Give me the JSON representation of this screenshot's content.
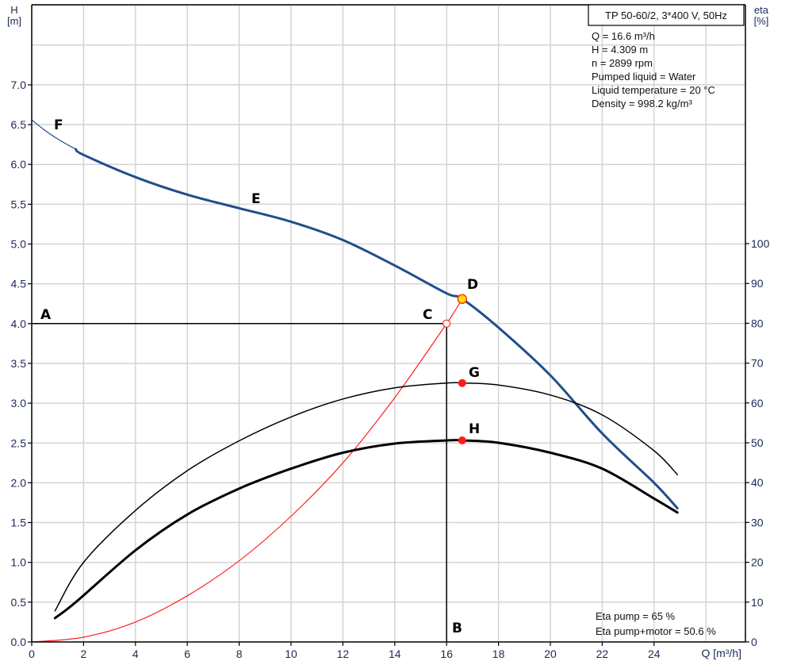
{
  "chart_data": {
    "type": "line",
    "title": "TP 50-60/2, 3*400 V, 50Hz",
    "xlabel": "Q [m³/h]",
    "ylabel_left": "H [m]",
    "ylabel_right": "eta [%]",
    "xlim": [
      0,
      27.5
    ],
    "ylim_left": [
      0,
      8.0
    ],
    "ylim_right": [
      0,
      160
    ],
    "grid": true,
    "x_ticks": [
      0,
      2,
      4,
      6,
      8,
      10,
      12,
      14,
      16,
      18,
      20,
      22,
      24
    ],
    "y_left_ticks": [
      0.0,
      0.5,
      1.0,
      1.5,
      2.0,
      2.5,
      3.0,
      3.5,
      4.0,
      4.5,
      5.0,
      5.5,
      6.0,
      6.5,
      7.0
    ],
    "y_right_ticks": [
      0,
      10,
      20,
      30,
      40,
      50,
      60,
      70,
      80,
      90,
      100
    ],
    "series": [
      {
        "name": "Pump curve H (extrapolated, thin)",
        "axis": "left",
        "color": "#1f4e8c",
        "width": 1.2,
        "x": [
          0,
          0.5,
          1.0,
          1.7
        ],
        "y": [
          6.56,
          6.43,
          6.32,
          6.19
        ]
      },
      {
        "name": "Pump curve H",
        "axis": "left",
        "color": "#1f4e8c",
        "width": 3,
        "x": [
          1.7,
          2,
          4,
          6,
          8,
          10,
          12,
          14,
          16,
          16.6,
          18,
          20,
          22,
          24,
          24.9
        ],
        "y": [
          6.19,
          6.12,
          5.84,
          5.62,
          5.45,
          5.28,
          5.05,
          4.73,
          4.38,
          4.31,
          3.95,
          3.35,
          2.62,
          2.0,
          1.68
        ]
      },
      {
        "name": "System curve",
        "axis": "left",
        "color": "#ff2020",
        "width": 1.2,
        "x": [
          0,
          2,
          4,
          6,
          8,
          10,
          12,
          14,
          16,
          16.6
        ],
        "y": [
          0,
          0.06,
          0.25,
          0.58,
          1.02,
          1.58,
          2.25,
          3.07,
          4.0,
          4.31
        ]
      },
      {
        "name": "Eta pump",
        "axis": "right",
        "color": "#000000",
        "width": 1.5,
        "x": [
          0.9,
          2,
          4,
          6,
          8,
          10,
          12,
          14,
          16,
          16.6,
          18,
          20,
          22,
          24,
          24.9
        ],
        "y": [
          7.8,
          20,
          33,
          43,
          50.5,
          56.5,
          61,
          63.8,
          65,
          65,
          64.5,
          62,
          57,
          48,
          42
        ]
      },
      {
        "name": "Eta pump+motor",
        "axis": "right",
        "color": "#000000",
        "width": 3,
        "x": [
          0.9,
          1.7,
          4,
          6,
          8,
          10,
          12,
          14,
          16,
          16.6,
          18,
          20,
          22,
          24,
          24.9
        ],
        "y": [
          6,
          10,
          23,
          32,
          38.5,
          43.5,
          47.5,
          49.8,
          50.6,
          50.6,
          50,
          47.5,
          43.5,
          36,
          32.5
        ]
      }
    ],
    "reference_lines": [
      {
        "name": "Required head",
        "from": [
          0,
          4.0
        ],
        "to": [
          16,
          4.0
        ]
      },
      {
        "name": "Required flow",
        "from": [
          16,
          0
        ],
        "to": [
          16,
          4.0
        ]
      }
    ],
    "points": [
      {
        "label": "A",
        "x": 0.5,
        "y": 4.12
      },
      {
        "label": "B",
        "x": 16.2,
        "y": 0.15
      },
      {
        "label": "C",
        "x": 16,
        "y": 4.0,
        "marker": "open-red-circle"
      },
      {
        "label": "D",
        "x": 16.6,
        "y": 4.309,
        "marker": "yellow-red-circle"
      },
      {
        "label": "E",
        "x": 7.3,
        "y": 5.55
      },
      {
        "label": "F",
        "x": 0.9,
        "y": 6.48
      },
      {
        "label": "G",
        "x": 16.6,
        "eta": 65,
        "marker": "red-dot"
      },
      {
        "label": "H",
        "x": 16.6,
        "eta": 50.6,
        "marker": "red-dot"
      }
    ],
    "annotations": {
      "info_box": [
        "Q = 16.6 m³/h",
        "H = 4.309 m",
        "n = 2899 rpm",
        "Pumped liquid = Water",
        "Liquid temperature = 20 °C",
        "Density = 998.2 kg/m³"
      ],
      "efficiency_box": [
        "Eta pump = 65 %",
        "Eta pump+motor = 50.6 %"
      ]
    }
  },
  "labels": {
    "title": "TP 50-60/2, 3*400 V, 50Hz",
    "y_left_title_1": "H",
    "y_left_title_2": "[m]",
    "y_right_title_1": "eta",
    "y_right_title_2": "[%]",
    "x_title": "Q [m³/h]",
    "info": [
      "Q = 16.6 m³/h",
      "H = 4.309 m",
      "n = 2899 rpm",
      "Pumped liquid = Water",
      "Liquid temperature = 20 °C",
      "Density = 998.2 kg/m³"
    ],
    "eff": [
      "Eta pump = 65 %",
      "Eta pump+motor = 50.6 %"
    ]
  },
  "colors": {
    "pump_curve": "#1f4e8c",
    "system_curve": "#ff2020",
    "grid": "#d4d4d4",
    "axis": "#000000",
    "duty_point_fill": "#ffe000"
  }
}
